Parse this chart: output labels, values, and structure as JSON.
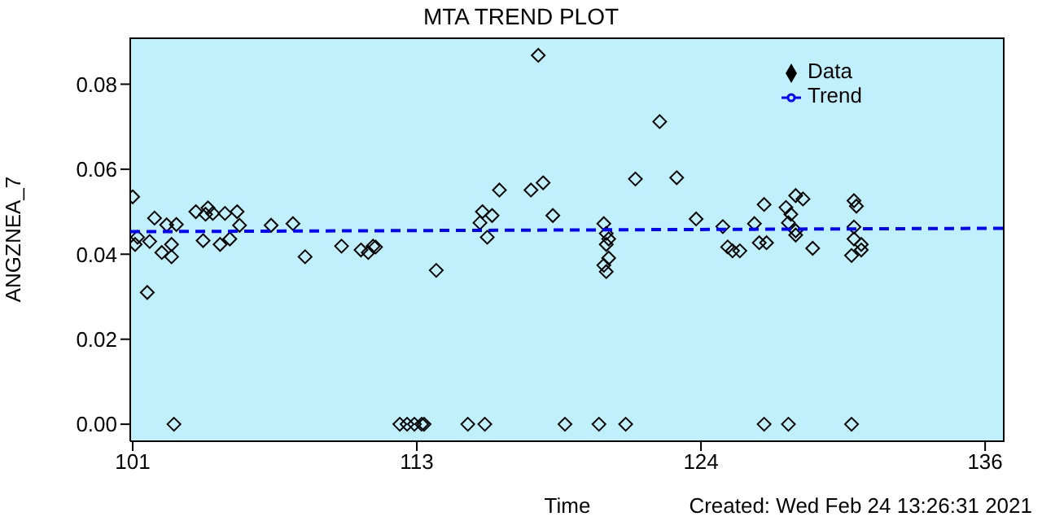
{
  "chart_data": {
    "type": "scatter",
    "title": "MTA TREND PLOT",
    "xlabel": "Time",
    "ylabel": "ANGZNEA_7",
    "annotations": [
      "Created: Wed Feb 24 13:26:31 2021"
    ],
    "xlim": [
      100.9,
      136.9
    ],
    "xticks": [
      {
        "value": 101,
        "label": "101"
      },
      {
        "value": 112.7,
        "label": "113"
      },
      {
        "value": 124.4,
        "label": "124"
      },
      {
        "value": 136.1,
        "label": "136"
      }
    ],
    "ylim": [
      -0.004,
      0.091
    ],
    "yticks": [
      {
        "value": 0,
        "label": "0.00"
      },
      {
        "value": 0.02,
        "label": "0.02"
      },
      {
        "value": 0.04,
        "label": "0.04"
      },
      {
        "value": 0.06,
        "label": "0.06"
      },
      {
        "value": 0.08,
        "label": "0.08"
      }
    ],
    "legend": "top right",
    "series": [
      {
        "name": "Data",
        "marker": "diamond",
        "color": "#000000",
        "x": [
          101.0,
          101.1,
          101.2,
          101.6,
          101.7,
          101.9,
          102.2,
          102.4,
          102.6,
          102.6,
          102.7,
          102.8,
          103.6,
          103.9,
          104.0,
          104.1,
          104.3,
          104.6,
          104.8,
          105.0,
          105.3,
          105.4,
          106.7,
          107.6,
          108.1,
          109.6,
          110.4,
          110.7,
          110.9,
          111.0,
          113.5,
          112.0,
          112.3,
          112.6,
          112.9,
          113.0,
          114.8,
          115.5,
          115.4,
          115.3,
          115.8,
          115.6,
          116.1,
          117.4,
          117.9,
          117.7,
          118.3,
          118.8,
          120.2,
          121.3,
          120.4,
          120.5,
          120.6,
          120.5,
          120.6,
          120.4,
          120.5,
          121.7,
          122.7,
          123.4,
          124.2,
          125.3,
          125.5,
          125.7,
          126.0,
          126.6,
          126.8,
          127.1,
          127.0,
          127.0,
          128.0,
          127.9,
          128.1,
          128.3,
          128.6,
          128.0,
          128.3,
          128.3,
          129.0,
          130.6,
          130.7,
          130.8,
          130.7,
          130.7,
          131.0,
          131.0,
          130.6
        ],
        "values": [
          0.0535,
          0.0423,
          0.044,
          0.031,
          0.043,
          0.0485,
          0.0404,
          0.0469,
          0.0394,
          0.0423,
          0,
          0.047,
          0.05,
          0.0432,
          0.0494,
          0.0509,
          0.0496,
          0.0423,
          0.0496,
          0.0436,
          0.05,
          0.0468,
          0.0468,
          0.0472,
          0.0394,
          0.0419,
          0.041,
          0.0404,
          0.0419,
          0.0417,
          0.0362,
          0,
          0,
          0,
          0,
          0,
          0,
          0,
          0.05,
          0.0474,
          0.0491,
          0.044,
          0.0551,
          0.0551,
          0.0568,
          0.0868,
          0.0491,
          0,
          0,
          0,
          0.0472,
          0.0449,
          0.0436,
          0.0423,
          0.0391,
          0.0374,
          0.0359,
          0.0577,
          0.0712,
          0.058,
          0.0483,
          0.0465,
          0.0417,
          0.0408,
          0.0408,
          0.0472,
          0.0427,
          0.0427,
          0.0517,
          0,
          0,
          0.051,
          0.0494,
          0.0538,
          0.053,
          0.0474,
          0.0455,
          0.0445,
          0.0414,
          0,
          0.0526,
          0.0513,
          0.0464,
          0.0436,
          0.0423,
          0.041,
          0.0397
        ]
      },
      {
        "name": "Trend",
        "type": "line",
        "line_style": "dashed",
        "color": "#0000ff",
        "x": [
          100.9,
          136.9
        ],
        "values": [
          0.0453,
          0.0461
        ]
      }
    ]
  }
}
